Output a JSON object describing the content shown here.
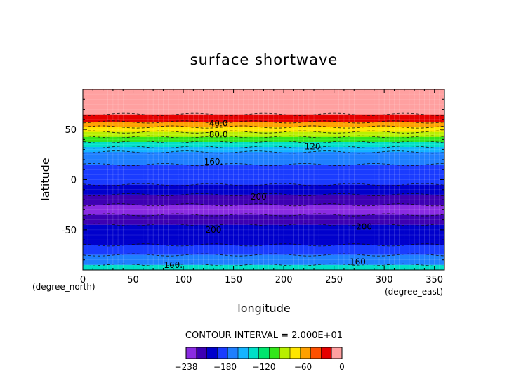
{
  "chart_data": {
    "type": "heatmap",
    "title": "surface shortwave",
    "xlabel": "longitude",
    "ylabel": "latitude",
    "x_unit": "(degree_east)",
    "y_unit": "(degree_north)",
    "xlim": [
      0,
      360
    ],
    "ylim": [
      -90,
      90
    ],
    "x_ticks": [
      "0",
      "50",
      "100",
      "150",
      "200",
      "250",
      "300",
      "350"
    ],
    "y_ticks": [
      "50",
      "0",
      "-50"
    ],
    "contour_interval_text": "CONTOUR INTERVAL = 2.000E+01",
    "colorbar": {
      "levels": [
        -238,
        -220,
        -200,
        -180,
        -160,
        -140,
        -120,
        -100,
        -80,
        -60,
        -40,
        -20,
        0
      ],
      "tick_labels": [
        "−238",
        "−180",
        "−120",
        "−60",
        "0"
      ],
      "colors": [
        "#8a2be2",
        "#3d00b3",
        "#0000cc",
        "#1a3cff",
        "#1f7fff",
        "#14b4ff",
        "#00e0c8",
        "#00e66e",
        "#33e61a",
        "#b8f000",
        "#ffe600",
        "#ffa000",
        "#ff5000",
        "#e60000",
        "#ffa0a0"
      ]
    },
    "latitude_band_values": [
      {
        "lat": 85,
        "value": 0
      },
      {
        "lat": 70,
        "value": 0
      },
      {
        "lat": 60,
        "value": -30
      },
      {
        "lat": 55,
        "value": -50
      },
      {
        "lat": 50,
        "value": -70
      },
      {
        "lat": 45,
        "value": -90
      },
      {
        "lat": 40,
        "value": -110
      },
      {
        "lat": 35,
        "value": -130
      },
      {
        "lat": 30,
        "value": -150
      },
      {
        "lat": 25,
        "value": -160
      },
      {
        "lat": 20,
        "value": -170
      },
      {
        "lat": 10,
        "value": -175
      },
      {
        "lat": 0,
        "value": -190
      },
      {
        "lat": -10,
        "value": -205
      },
      {
        "lat": -20,
        "value": -215
      },
      {
        "lat": -30,
        "value": -225
      },
      {
        "lat": -40,
        "value": -210
      },
      {
        "lat": -50,
        "value": -205
      },
      {
        "lat": -60,
        "value": -195
      },
      {
        "lat": -70,
        "value": -175
      },
      {
        "lat": -80,
        "value": -160
      },
      {
        "lat": -90,
        "value": -140
      }
    ],
    "contour_labels": [
      {
        "text": "40.0",
        "lon": 135,
        "lat": 56
      },
      {
        "text": "80.0",
        "lon": 135,
        "lat": 45
      },
      {
        "text": "120.",
        "lon": 230,
        "lat": 33
      },
      {
        "text": "160.",
        "lon": 130,
        "lat": 18
      },
      {
        "text": "200",
        "lon": 175,
        "lat": -17
      },
      {
        "text": "200",
        "lon": 130,
        "lat": -50
      },
      {
        "text": "200",
        "lon": 280,
        "lat": -47
      },
      {
        "text": "160.",
        "lon": 90,
        "lat": -85
      },
      {
        "text": "160.",
        "lon": 275,
        "lat": -82
      }
    ]
  }
}
